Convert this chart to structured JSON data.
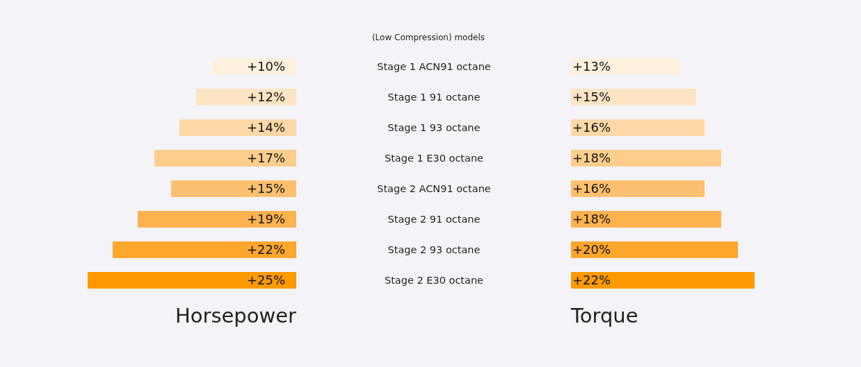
{
  "chart_data": [
    {
      "type": "bar",
      "orientation": "horizontal",
      "title": "(Low Compression) models",
      "xlabel": "Horsepower",
      "categories": [
        "Stage 1 ACN91 octane",
        "Stage 1 91 octane",
        "Stage 1 93 octane",
        "Stage 1 E30 octane",
        "Stage 2 ACN91 octane",
        "Stage 2 91 octane",
        "Stage 2 93 octane",
        "Stage 2 E30 octane"
      ],
      "values": [
        10,
        12,
        14,
        17,
        15,
        19,
        22,
        25
      ],
      "value_labels": [
        "+10%",
        "+12%",
        "+14%",
        "+17%",
        "+15%",
        "+19%",
        "+22%",
        "+25%"
      ],
      "colors": [
        "#fdf0dd",
        "#fde4c2",
        "#fdd8a6",
        "#fdcd8c",
        "#fdc070",
        "#fdb24e",
        "#fda62c",
        "#fd9a00"
      ]
    },
    {
      "type": "bar",
      "orientation": "horizontal",
      "xlabel": "Torque",
      "categories": [
        null,
        null,
        null,
        null,
        null,
        null,
        null,
        null
      ],
      "values": [
        13,
        15,
        16,
        18,
        16,
        18,
        20,
        22
      ],
      "value_labels": [
        "+13%",
        "+15%",
        "+16%",
        "+18%",
        "+16%",
        "+18%",
        "+20%",
        "+22%"
      ],
      "colors": [
        "#fdf0dd",
        "#fde4c2",
        "#fdd8a6",
        "#fdcd8c",
        "#fdc070",
        "#fdb24e",
        "#fda62c",
        "#fd9a00"
      ]
    }
  ]
}
